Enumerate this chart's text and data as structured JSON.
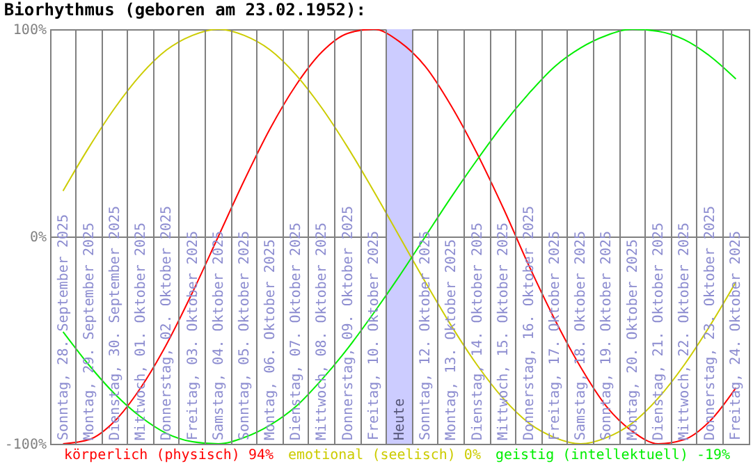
{
  "chart_data": {
    "type": "line",
    "title": "Biorhythmus (geboren am 23.02.1952):",
    "categories": [
      "Sonntag, 28. September 2025",
      "Montag, 29. September 2025",
      "Dienstag, 30. September 2025",
      "Mittwoch, 01. Oktober 2025",
      "Donnerstag, 02. Oktober 2025",
      "Freitag, 03. Oktober 2025",
      "Samstag, 04. Oktober 2025",
      "Sonntag, 05. Oktober 2025",
      "Montag, 06. Oktober 2025",
      "Dienstag, 07. Oktober 2025",
      "Mittwoch, 08. Oktober 2025",
      "Donnerstag, 09. Oktober 2025",
      "Freitag, 10. Oktober 2025",
      "Heute",
      "Sonntag, 12. Oktober 2025",
      "Montag, 13. Oktober 2025",
      "Dienstag, 14. Oktober 2025",
      "Mittwoch, 15. Oktober 2025",
      "Donnerstag, 16. Oktober 2025",
      "Freitag, 17. Oktober 2025",
      "Samstag, 18. Oktober 2025",
      "Sonntag, 19. Oktober 2025",
      "Montag, 20. Oktober 2025",
      "Dienstag, 21. Oktober 2025",
      "Mittwoch, 22. Oktober 2025",
      "Donnerstag, 23. Oktober 2025",
      "Freitag, 24. Oktober 2025"
    ],
    "series": [
      {
        "name": "körperlich (physisch) 94%",
        "color": "#ff0000",
        "values": [
          -100,
          -98,
          -89,
          -73,
          -52,
          -27,
          0,
          27,
          52,
          73,
          89,
          98,
          100,
          94,
          82,
          63,
          40,
          14,
          -14,
          -40,
          -63,
          -82,
          -94,
          -100,
          -98,
          -89,
          -73
        ]
      },
      {
        "name": "emotional (seelisch) 0%",
        "color": "#cccc00",
        "values": [
          22,
          43,
          62,
          78,
          90,
          97,
          100,
          97,
          90,
          78,
          62,
          43,
          22,
          0,
          -22,
          -43,
          -62,
          -78,
          -90,
          -97,
          -100,
          -97,
          -90,
          -78,
          -62,
          -43,
          -22
        ]
      },
      {
        "name": "geistig (intellektuell) -19%",
        "color": "#00ee00",
        "values": [
          -46,
          -62,
          -76,
          -87,
          -95,
          -99,
          -100,
          -97,
          -91,
          -82,
          -69,
          -54,
          -37,
          -19,
          0,
          19,
          37,
          54,
          69,
          82,
          91,
          97,
          100,
          99,
          95,
          87,
          76
        ]
      }
    ],
    "ylim": [
      -100,
      100
    ],
    "yticks": [
      {
        "value": -100,
        "label": "-100%"
      },
      {
        "value": 0,
        "label": "0%"
      },
      {
        "value": 100,
        "label": "100%"
      }
    ],
    "bands": [
      {
        "axis": "x",
        "from": "Heute",
        "to": "Heute",
        "color": "#ccccff"
      }
    ],
    "grid": true,
    "legend": "bottom"
  }
}
